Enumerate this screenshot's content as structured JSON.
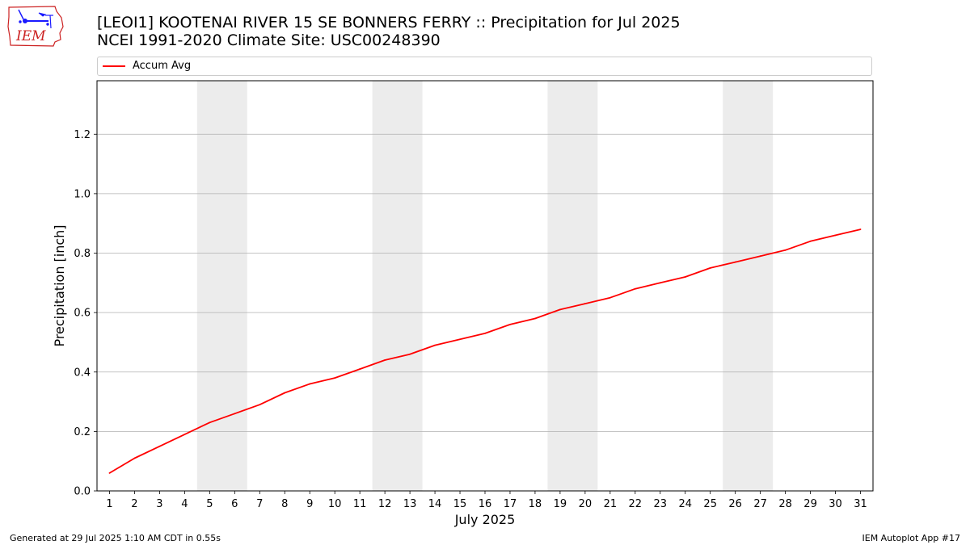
{
  "header": {
    "title_line1": "[LEOI1] KOOTENAI RIVER 15 SE BONNERS FERRY :: Precipitation for Jul 2025",
    "title_line2": "NCEI 1991-2020 Climate Site: USC00248390",
    "logo_text": "IEM"
  },
  "footer": {
    "generated": "Generated at 29 Jul 2025 1:10 AM CDT in 0.55s",
    "app": "IEM Autoplot App #17"
  },
  "colors": {
    "series": "#ff0000",
    "weekend_band": "#ececec",
    "grid": "#b0b0b0",
    "logo": "#cc2222",
    "logo_icon": "#1a1aff"
  },
  "chart_data": {
    "type": "line",
    "title": "[LEOI1] KOOTENAI RIVER 15 SE BONNERS FERRY :: Precipitation for Jul 2025",
    "subtitle": "NCEI 1991-2020 Climate Site: USC00248390",
    "xlabel": "July 2025",
    "ylabel": "Precipitation [inch]",
    "x": [
      1,
      2,
      3,
      4,
      5,
      6,
      7,
      8,
      9,
      10,
      11,
      12,
      13,
      14,
      15,
      16,
      17,
      18,
      19,
      20,
      21,
      22,
      23,
      24,
      25,
      26,
      27,
      28,
      29,
      30,
      31
    ],
    "x_tick_labels": [
      "1",
      "2",
      "3",
      "4",
      "5",
      "6",
      "7",
      "8",
      "9",
      "10",
      "11",
      "12",
      "13",
      "14",
      "15",
      "16",
      "17",
      "18",
      "19",
      "20",
      "21",
      "22",
      "23",
      "24",
      "25",
      "26",
      "27",
      "28",
      "29",
      "30",
      "31"
    ],
    "xlim": [
      0.5,
      31.5
    ],
    "ylim": [
      0,
      1.38
    ],
    "y_ticks": [
      0.0,
      0.2,
      0.4,
      0.6,
      0.8,
      1.0,
      1.2
    ],
    "y_tick_labels": [
      "0.0",
      "0.2",
      "0.4",
      "0.6",
      "0.8",
      "1.0",
      "1.2"
    ],
    "grid": "horizontal",
    "legend_position": "top",
    "weekend_bands": [
      [
        5,
        6
      ],
      [
        12,
        13
      ],
      [
        19,
        20
      ],
      [
        26,
        27
      ]
    ],
    "series": [
      {
        "name": "Accum Avg",
        "values": [
          0.06,
          0.11,
          0.15,
          0.19,
          0.23,
          0.26,
          0.29,
          0.33,
          0.36,
          0.38,
          0.41,
          0.44,
          0.46,
          0.49,
          0.51,
          0.53,
          0.56,
          0.58,
          0.61,
          0.63,
          0.65,
          0.68,
          0.7,
          0.72,
          0.75,
          0.77,
          0.79,
          0.81,
          0.84,
          0.86,
          0.88
        ]
      }
    ]
  }
}
